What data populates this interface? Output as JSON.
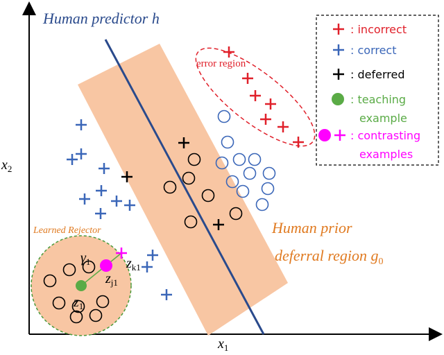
{
  "title": {
    "text": "Human predictor",
    "var": "h"
  },
  "error_region": "error region",
  "rejector": "Learned Rejector",
  "prior": {
    "line1": "Human prior",
    "line2": "deferral region",
    "var": "g",
    "sub": "0"
  },
  "axes": {
    "x": {
      "base": "x",
      "sub": "1"
    },
    "y": {
      "base": "x",
      "sub": "2"
    }
  },
  "points": {
    "gamma": {
      "base": "γ",
      "sub": "1"
    },
    "zk": {
      "base": "z",
      "sub": "k1"
    },
    "zj": {
      "base": "z",
      "sub": "j1"
    },
    "z1": {
      "base": "z",
      "sub": "1"
    }
  },
  "legend": [
    {
      "lines": [
        ": incorrect"
      ]
    },
    {
      "lines": [
        ": correct"
      ]
    },
    {
      "lines": [
        ": deferred"
      ]
    },
    {
      "lines": [
        ": teaching",
        "example"
      ]
    },
    {
      "lines": [
        ": contrasting",
        "examples"
      ]
    }
  ]
}
